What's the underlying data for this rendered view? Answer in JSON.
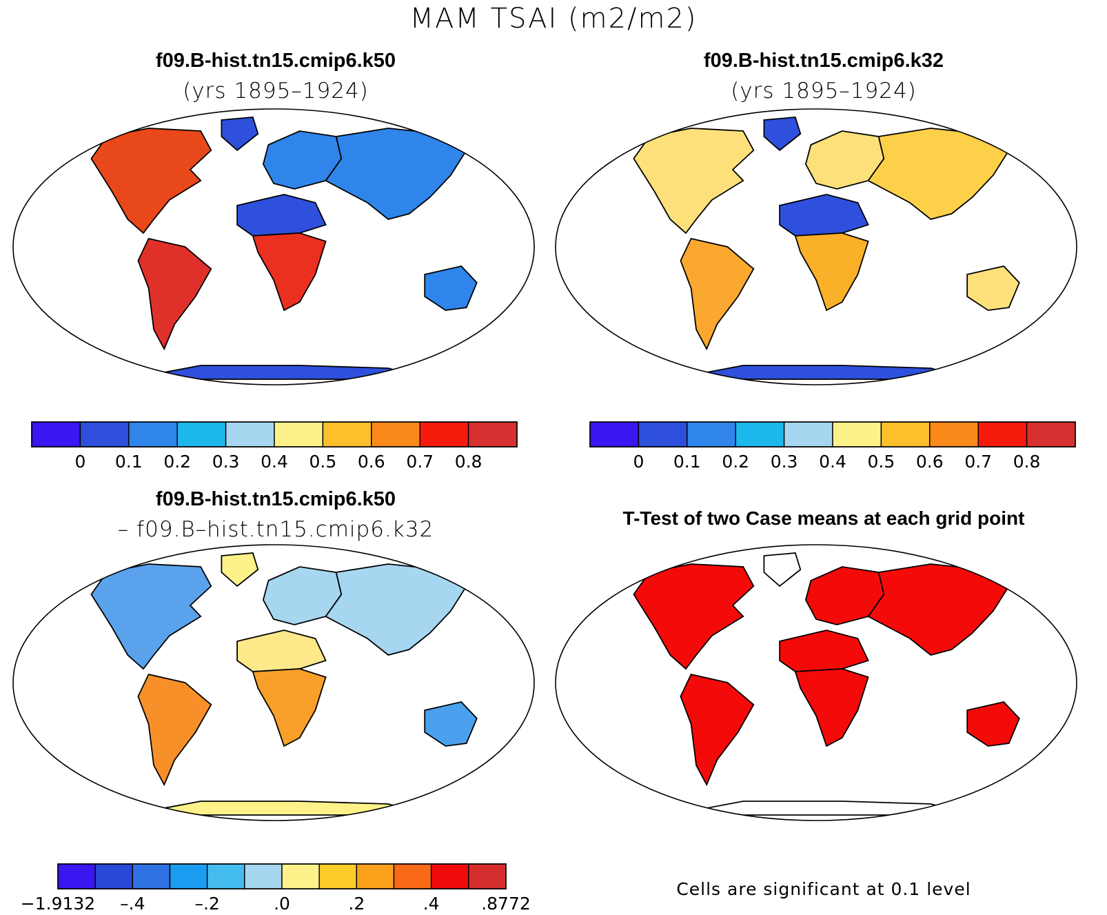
{
  "title": "MAM TSAI (m2/m2)",
  "panels": [
    {
      "id": "k50",
      "title": "f09.B-hist.tn15.cmip6.k50",
      "subtitle": "(yrs 1895–1924)"
    },
    {
      "id": "k32",
      "title": "f09.B-hist.tn15.cmip6.k32",
      "subtitle": "(yrs 1895–1924)"
    },
    {
      "id": "diff",
      "title": "f09.B-hist.tn15.cmip6.k50",
      "subtitle": "– f09.B–hist.tn15.cmip6.k32"
    },
    {
      "id": "ttest",
      "title": "T-Test of two Case means at each grid point",
      "subtitle": ""
    }
  ],
  "colorbars": {
    "main": {
      "colors": [
        "#3a16f0",
        "#2e4fdc",
        "#2f85ea",
        "#1cb8ec",
        "#a6d6f0",
        "#fdf28a",
        "#fdc02a",
        "#f98a1a",
        "#f51a0c",
        "#d63030"
      ],
      "labels": [
        "0",
        "0.1",
        "0.2",
        "0.3",
        "0.4",
        "0.5",
        "0.6",
        "0.7",
        "0.8"
      ]
    },
    "diff": {
      "colors": [
        "#3a16f0",
        "#2848d8",
        "#2f72e4",
        "#1a9df0",
        "#44bcf0",
        "#a6d6f0",
        "#fdf28a",
        "#fdcc2a",
        "#fba01a",
        "#f86a16",
        "#f00a0a",
        "#d62e2e"
      ],
      "labels": [
        "−1.9132",
        "–.4",
        "–.2",
        ".0",
        ".2",
        ".4",
        ".8772"
      ]
    }
  },
  "ttest_note": "Cells are significant at 0.1 level",
  "map_colors": {
    "k50": {
      "na": "#e8481a",
      "sa": "#e0302a",
      "af_n": "#2e50dc",
      "af_s": "#ec3020",
      "eu": "#2f85ea",
      "as": "#2f85ea",
      "au": "#2f85ea",
      "ant": "#2e50dc",
      "gr": "#2e50dc"
    },
    "k32": {
      "na": "#fde07a",
      "sa": "#fba830",
      "af_n": "#2e50dc",
      "af_s": "#fbb02a",
      "eu": "#fde07a",
      "as": "#fdd04a",
      "au": "#fde07a",
      "ant": "#2e50dc",
      "gr": "#2e50dc"
    },
    "diff": {
      "na": "#5aa2ec",
      "sa": "#f8902a",
      "af_n": "#fde98a",
      "af_s": "#f8a02a",
      "eu": "#a6d6f0",
      "as": "#a6d6f0",
      "au": "#4aa0ec",
      "ant": "#fdf28a",
      "gr": "#fdf28a"
    },
    "ttest": {
      "na": "#f50a0a",
      "sa": "#f50a0a",
      "af_n": "#f50a0a",
      "af_s": "#f50a0a",
      "eu": "#f50a0a",
      "as": "#f50a0a",
      "au": "#f50a0a",
      "ant": "#ffffff",
      "gr": "#ffffff"
    }
  }
}
